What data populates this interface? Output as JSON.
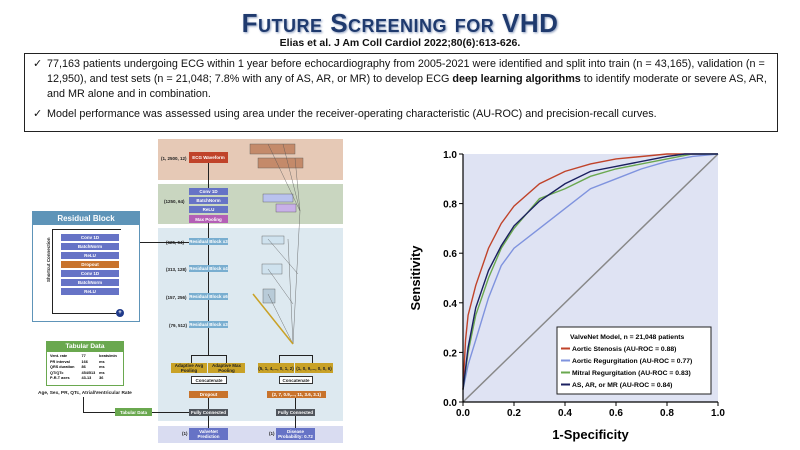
{
  "title": "Future Screening for VHD",
  "citation": "Elias et al. J Am Coll Cardiol 2022;80(6):613-626.",
  "bullets": [
    {
      "icon": "checkmark-icon",
      "text_before": "77,163 patients undergoing ECG within 1 year before echocardiography from 2005-2021 were identified and split into train (n = 43,165), validation (n = 12,950), and test sets (n = 21,048; 7.8% with any of AS, AR, or MR) to develop ECG ",
      "bold": "deep learning algorithms",
      "text_after": " to identify moderate or severe AS, AR, and MR alone and in combination."
    },
    {
      "icon": "checkmark-icon",
      "text_before": "Model performance was assessed using area under the receiver-operating characteristic (AU-ROC) and precision-recall curves.",
      "bold": "",
      "text_after": ""
    }
  ],
  "diagram": {
    "residual_block": {
      "title": "Residual Block",
      "shortcut_label": "Shortcut Connection",
      "layers": [
        "Conv 1D",
        "BatchNorm",
        "ReLU",
        "Dropout",
        "Conv 1D",
        "BatchNorm",
        "ReLU"
      ],
      "add_symbol": "+"
    },
    "tabular": {
      "title": "Tabular Data",
      "rows": [
        [
          "Vent. rate",
          "77",
          "beats/min"
        ],
        [
          "PR interval",
          "166",
          "ms"
        ],
        [
          "QRS duration",
          "86",
          "ms"
        ],
        [
          "QT/QTc",
          "454/513",
          "ms"
        ],
        [
          "P-R-T axes",
          "43-13",
          "36"
        ]
      ],
      "caption": "Age, Sex, PR, QTc, Atrial/Ventricular Rate",
      "button": "Tabular Data"
    },
    "shapes": [
      "(1, 2500, 12)",
      "(1250, 64)",
      "(625, 64)",
      "(313, 128)",
      "(157, 256)",
      "(79, 512)",
      "(1)",
      "(1)"
    ],
    "main": {
      "ecg": "ECG Waveform",
      "conv": "Conv 1D",
      "bn": "BatchNorm",
      "relu": "ReLU",
      "maxpool": "Max Pooling",
      "res1": "Residual Block x3",
      "res2": "Residual Block x4",
      "res3": "Residual Block x6",
      "res4": "Residual Block x3",
      "avgpool": "Adaptive Avg Pooling",
      "maxpool2": "Adaptive Max Pooling",
      "concat": "Concatenate",
      "dropout": "Dropout",
      "fc": "Fully Connected",
      "output": "ValveNet Prediction"
    },
    "right": {
      "vec1": "(5, 1, 4,..., 0, 1, 2)",
      "vec2": "(1, 0, 9,..., 0, 0, 6)",
      "concat": "Concatenate",
      "vec3": "(2, 7, 0.9,..., 11, 3.6, 3.1)",
      "fc": "Fully Connected",
      "output": "Disease Probability: 0.72"
    },
    "colors": {
      "band_input": "#e6c9b6",
      "band_stem": "#c9d6c0",
      "band_body": "#dde9f0",
      "band_output": "#d9dcf1"
    }
  },
  "chart_data": {
    "type": "line",
    "xlabel": "1-Specificity",
    "ylabel": "Sensitivity",
    "xlim": [
      0,
      1
    ],
    "ylim": [
      0,
      1
    ],
    "xticks": [
      "0.0",
      "0.2",
      "0.4",
      "0.6",
      "0.8",
      "1.0"
    ],
    "yticks": [
      "0.0",
      "0.2",
      "0.4",
      "0.6",
      "0.8",
      "1.0"
    ],
    "grid": false,
    "background": "#dfe3f3",
    "legend": {
      "title": "ValveNet Model, n = 21,048 patients",
      "placement": "bottom-right"
    },
    "diagonal": {
      "color": "#888888",
      "points": [
        [
          0,
          0
        ],
        [
          1,
          1
        ]
      ]
    },
    "series": [
      {
        "name": "Aortic Stenosis (AU-ROC = 0.88)",
        "color": "#c0432a",
        "points": [
          [
            0,
            0.05
          ],
          [
            0.01,
            0.25
          ],
          [
            0.02,
            0.35
          ],
          [
            0.05,
            0.47
          ],
          [
            0.1,
            0.62
          ],
          [
            0.15,
            0.72
          ],
          [
            0.2,
            0.79
          ],
          [
            0.3,
            0.88
          ],
          [
            0.4,
            0.93
          ],
          [
            0.5,
            0.96
          ],
          [
            0.6,
            0.98
          ],
          [
            0.8,
            1.0
          ],
          [
            1,
            1
          ]
        ]
      },
      {
        "name": "Aortic Regurgitation (AU-ROC = 0.77)",
        "color": "#7f93de",
        "points": [
          [
            0,
            0.05
          ],
          [
            0.02,
            0.15
          ],
          [
            0.05,
            0.25
          ],
          [
            0.1,
            0.42
          ],
          [
            0.15,
            0.55
          ],
          [
            0.2,
            0.62
          ],
          [
            0.3,
            0.7
          ],
          [
            0.4,
            0.78
          ],
          [
            0.5,
            0.86
          ],
          [
            0.6,
            0.9
          ],
          [
            0.7,
            0.94
          ],
          [
            0.8,
            0.97
          ],
          [
            0.9,
            0.99
          ],
          [
            1,
            1
          ]
        ]
      },
      {
        "name": "Mitral Regurgitation (AU-ROC = 0.83)",
        "color": "#6aa84f",
        "points": [
          [
            0,
            0.05
          ],
          [
            0.02,
            0.2
          ],
          [
            0.05,
            0.35
          ],
          [
            0.1,
            0.5
          ],
          [
            0.15,
            0.62
          ],
          [
            0.2,
            0.7
          ],
          [
            0.3,
            0.82
          ],
          [
            0.4,
            0.86
          ],
          [
            0.5,
            0.91
          ],
          [
            0.6,
            0.94
          ],
          [
            0.8,
            0.98
          ],
          [
            0.9,
            1
          ],
          [
            1,
            1
          ]
        ]
      },
      {
        "name": "AS, AR, or MR (AU-ROC = 0.84)",
        "color": "#1b2060",
        "points": [
          [
            0,
            0.05
          ],
          [
            0.02,
            0.22
          ],
          [
            0.05,
            0.38
          ],
          [
            0.1,
            0.53
          ],
          [
            0.15,
            0.63
          ],
          [
            0.2,
            0.71
          ],
          [
            0.3,
            0.81
          ],
          [
            0.4,
            0.88
          ],
          [
            0.5,
            0.93
          ],
          [
            0.6,
            0.95
          ],
          [
            0.8,
            0.99
          ],
          [
            0.87,
            1
          ],
          [
            1,
            1
          ]
        ]
      }
    ]
  }
}
